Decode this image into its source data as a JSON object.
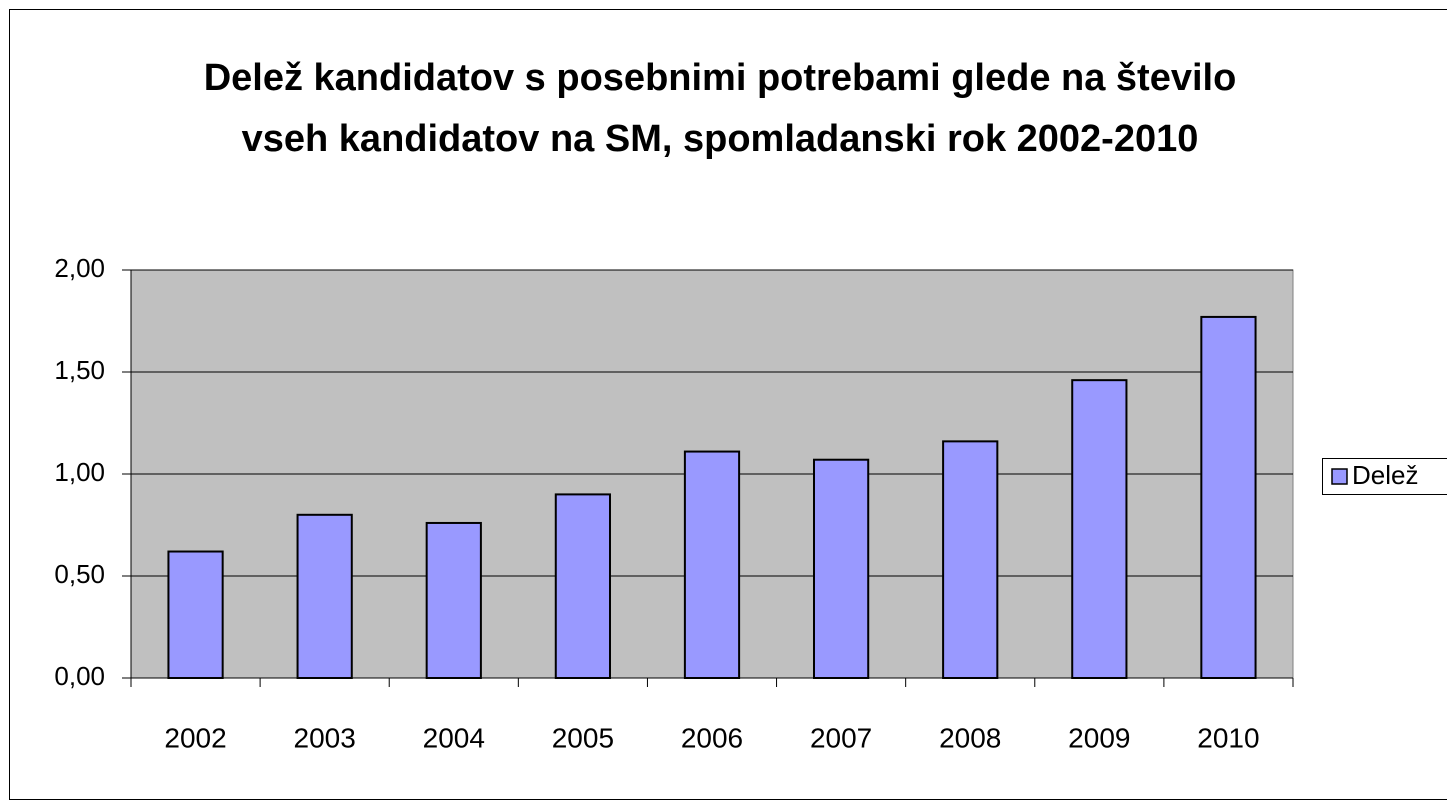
{
  "chart_data": {
    "type": "bar",
    "title": [
      "Delež kandidatov s posebnimi potrebami glede na število",
      "vseh kandidatov na SM, spomladanski rok 2002-2010"
    ],
    "categories": [
      "2002",
      "2003",
      "2004",
      "2005",
      "2006",
      "2007",
      "2008",
      "2009",
      "2010"
    ],
    "series": [
      {
        "name": "Delež",
        "color": "#9999ff",
        "values": [
          0.62,
          0.8,
          0.76,
          0.9,
          1.11,
          1.07,
          1.16,
          1.46,
          1.77
        ]
      }
    ],
    "ylim": [
      0,
      2
    ],
    "yticks": [
      {
        "value": 0,
        "label": "0,00"
      },
      {
        "value": 0.5,
        "label": "0,50"
      },
      {
        "value": 1,
        "label": "1,00"
      },
      {
        "value": 1.5,
        "label": "1,50"
      },
      {
        "value": 2,
        "label": "2,00"
      }
    ],
    "grid": true,
    "legend": "right"
  }
}
